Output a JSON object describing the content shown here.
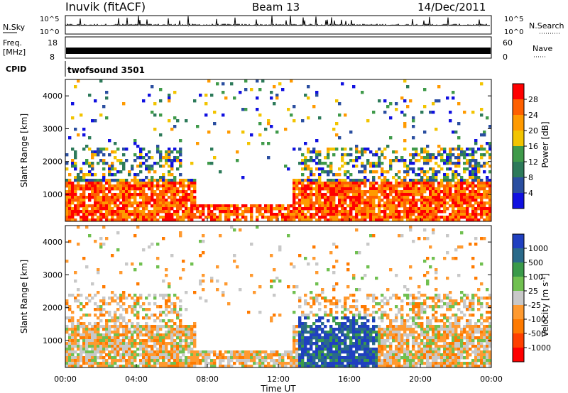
{
  "header": {
    "radar_label": "Inuvik (fitACF)",
    "beam_label": "Beam 13",
    "date_label": "14/Dec/2011"
  },
  "top_panels": {
    "nsky_label": "N.Sky",
    "nsearch_label": "N.Search",
    "nsky_ticks": [
      "10^5",
      "10^0"
    ],
    "nsearch_ticks": [
      "10^5",
      "10^0"
    ],
    "freq_label": "Freq.",
    "freq_unit": "[MHz]",
    "freq_ticks": [
      "18",
      "8"
    ],
    "nave_label": "Nave",
    "nave_ticks": [
      "60",
      "0"
    ],
    "cpid_label": "CPID",
    "cpid_value": "twofsound 3501"
  },
  "chart_data": [
    {
      "type": "heatmap",
      "parameter": "Power",
      "ylabel": "Slant Range [km]",
      "ylim": [
        180,
        4500
      ],
      "yticks": [
        1000,
        2000,
        3000,
        4000
      ],
      "colorbar": {
        "label": "Power [dB]",
        "ticks": [
          "28",
          "24",
          "20",
          "16",
          "12",
          "8",
          "4"
        ],
        "colors": [
          "#ff0000",
          "#ff6000",
          "#ff9a00",
          "#f2c400",
          "#3f9a4a",
          "#2d7a5a",
          "#2a4ea0",
          "#1010e0"
        ]
      }
    },
    {
      "type": "heatmap",
      "parameter": "Velocity",
      "ylabel": "Slant Range [km]",
      "ylim": [
        180,
        4500
      ],
      "yticks": [
        1000,
        2000,
        3000,
        4000
      ],
      "colorbar": {
        "label": "Velocity [m s",
        "label_sup": "-1",
        "label_end": "]",
        "ticks": [
          "1000",
          "500",
          "100",
          "25",
          "-25",
          "-100",
          "-500",
          "-1000"
        ],
        "colors": [
          "#2040c0",
          "#2a6a8a",
          "#3a9a4a",
          "#70c050",
          "#c8c8c8",
          "#ff9a30",
          "#ff7a00",
          "#ff4000",
          "#ff0000"
        ]
      }
    }
  ],
  "time_axis": {
    "xlabel": "Time UT",
    "ticks": [
      "00:00",
      "04:00",
      "08:00",
      "12:00",
      "16:00",
      "20:00",
      "00:00"
    ]
  }
}
